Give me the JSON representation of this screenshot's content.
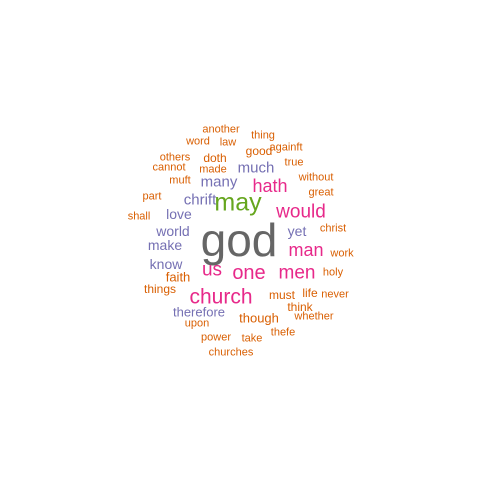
{
  "palette": {
    "gray": "#666666",
    "green": "#66a61e",
    "magenta": "#e7298a",
    "purple": "#7570b3",
    "orange": "#d95f02"
  },
  "words": [
    {
      "text": "god",
      "color": "gray"
    },
    {
      "text": "may",
      "color": "green"
    },
    {
      "text": "church",
      "color": "magenta"
    },
    {
      "text": "one",
      "color": "magenta"
    },
    {
      "text": "men",
      "color": "magenta"
    },
    {
      "text": "us",
      "color": "magenta"
    },
    {
      "text": "would",
      "color": "magenta"
    },
    {
      "text": "hath",
      "color": "magenta"
    },
    {
      "text": "man",
      "color": "magenta"
    },
    {
      "text": "much",
      "color": "purple"
    },
    {
      "text": "many",
      "color": "purple"
    },
    {
      "text": "chrift",
      "color": "purple"
    },
    {
      "text": "love",
      "color": "purple"
    },
    {
      "text": "world",
      "color": "purple"
    },
    {
      "text": "yet",
      "color": "purple"
    },
    {
      "text": "make",
      "color": "purple"
    },
    {
      "text": "know",
      "color": "purple"
    },
    {
      "text": "faith",
      "color": "orange"
    },
    {
      "text": "therefore",
      "color": "purple"
    },
    {
      "text": "things",
      "color": "orange"
    },
    {
      "text": "though",
      "color": "orange"
    },
    {
      "text": "must",
      "color": "orange"
    },
    {
      "text": "life",
      "color": "orange"
    },
    {
      "text": "think",
      "color": "orange"
    },
    {
      "text": "good",
      "color": "orange"
    },
    {
      "text": "doth",
      "color": "orange"
    },
    {
      "text": "another",
      "color": "orange"
    },
    {
      "text": "thing",
      "color": "orange"
    },
    {
      "text": "word",
      "color": "orange"
    },
    {
      "text": "law",
      "color": "orange"
    },
    {
      "text": "againft",
      "color": "orange"
    },
    {
      "text": "others",
      "color": "orange"
    },
    {
      "text": "true",
      "color": "orange"
    },
    {
      "text": "cannot",
      "color": "orange"
    },
    {
      "text": "made",
      "color": "orange"
    },
    {
      "text": "muft",
      "color": "orange"
    },
    {
      "text": "without",
      "color": "orange"
    },
    {
      "text": "part",
      "color": "orange"
    },
    {
      "text": "great",
      "color": "orange"
    },
    {
      "text": "shall",
      "color": "orange"
    },
    {
      "text": "christ",
      "color": "orange"
    },
    {
      "text": "work",
      "color": "orange"
    },
    {
      "text": "holy",
      "color": "orange"
    },
    {
      "text": "never",
      "color": "orange"
    },
    {
      "text": "whether",
      "color": "orange"
    },
    {
      "text": "upon",
      "color": "orange"
    },
    {
      "text": "power",
      "color": "orange"
    },
    {
      "text": "take",
      "color": "orange"
    },
    {
      "text": "thefe",
      "color": "orange"
    },
    {
      "text": "churches",
      "color": "orange"
    }
  ]
}
